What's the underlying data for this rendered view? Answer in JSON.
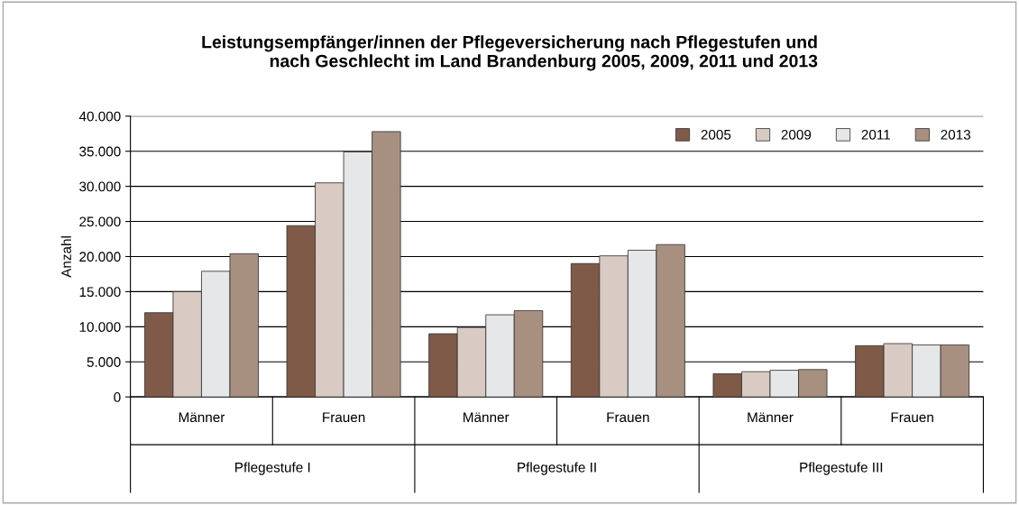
{
  "chart_data": {
    "type": "bar",
    "title": "Leistungsempfänger/innen der Pflegeversicherung nach Pflegestufen und\nnach Geschlecht im Land Brandenburg 2005, 2009, 2011 und 2013",
    "ylabel": "Anzahl",
    "categories": [
      "Männer",
      "Frauen",
      "Männer",
      "Frauen",
      "Männer",
      "Frauen"
    ],
    "annotations": [
      "Pflegestufe I",
      "Pflegestufe II",
      "Pflegestufe III"
    ],
    "series": [
      {
        "name": "2005",
        "color": "#7f5a48",
        "values": [
          12000,
          24400,
          9000,
          19000,
          3300,
          7300
        ]
      },
      {
        "name": "2009",
        "color": "#d9cbc3",
        "values": [
          15000,
          30500,
          9900,
          20100,
          3600,
          7600
        ]
      },
      {
        "name": "2011",
        "color": "#e6e7e9",
        "values": [
          17900,
          34900,
          11700,
          20900,
          3800,
          7400
        ]
      },
      {
        "name": "2013",
        "color": "#a89080",
        "values": [
          20400,
          37800,
          12300,
          21700,
          3900,
          7400
        ]
      }
    ],
    "ylim": [
      0,
      40000
    ],
    "yticks": [
      0,
      {
        "value": 5000,
        "label": "5.000"
      },
      {
        "value": 10000,
        "label": "10.000"
      },
      {
        "value": 15000,
        "label": "15.000"
      },
      {
        "value": 20000,
        "label": "20.000"
      },
      {
        "value": 25000,
        "label": "25.000"
      },
      {
        "value": 30000,
        "label": "30.000"
      },
      {
        "value": 35000,
        "label": "35.000"
      },
      {
        "value": 40000,
        "label": "40.000"
      }
    ],
    "grid": "y",
    "legend": "top right"
  }
}
